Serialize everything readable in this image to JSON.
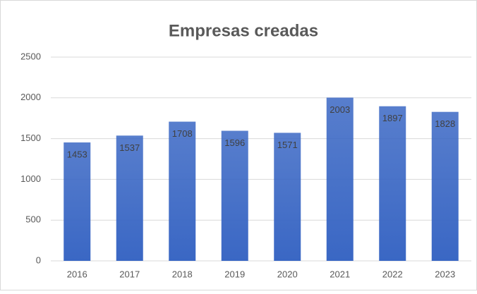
{
  "chart_data": {
    "type": "bar",
    "title": "Empresas creadas",
    "categories": [
      "2016",
      "2017",
      "2018",
      "2019",
      "2020",
      "2021",
      "2022",
      "2023"
    ],
    "values": [
      1453,
      1537,
      1708,
      1596,
      1571,
      2003,
      1897,
      1828
    ],
    "color": "#3a67c4",
    "ylim": [
      0,
      2500
    ],
    "yticks": [
      0,
      500,
      1000,
      1500,
      2000,
      2500
    ],
    "grid": true
  }
}
